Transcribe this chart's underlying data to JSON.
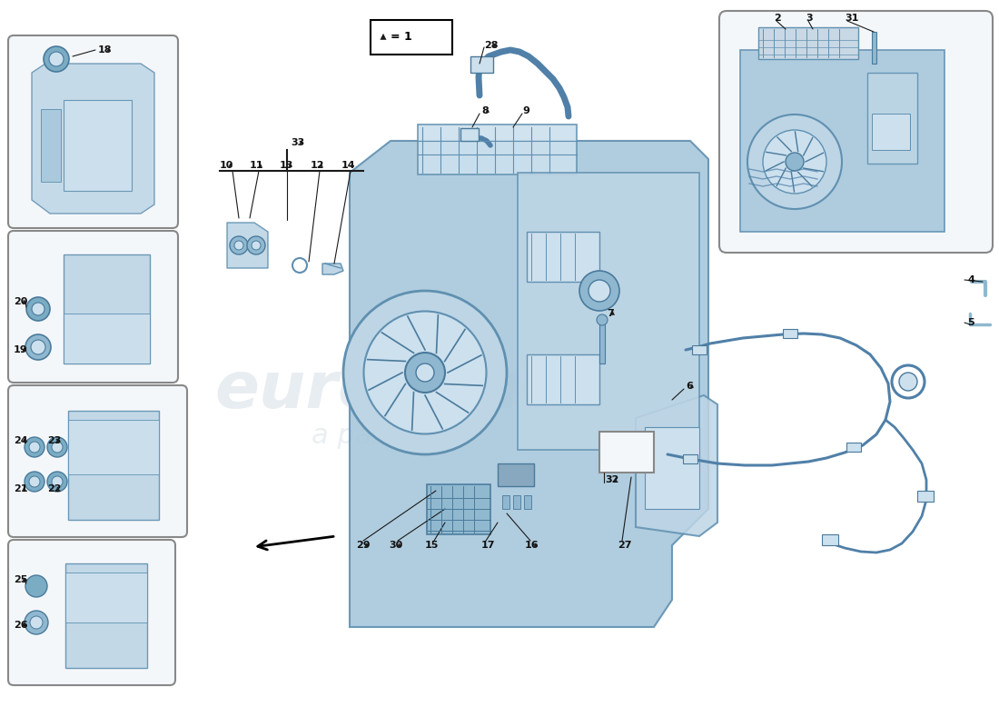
{
  "bg_color": "#ffffff",
  "box_fc": "#f4f7fa",
  "box_ec": "#888888",
  "blue1": "#a8c8dc",
  "blue2": "#bdd5e5",
  "blue3": "#cce0ee",
  "blue4": "#8fb8d0",
  "blue5": "#7aacc4",
  "dark_blue": "#4a7a9b",
  "mid_blue": "#6090b0",
  "wire_color": "#5080a8",
  "line_color": "#1a1a1a",
  "label_fs": 8,
  "small_fs": 7,
  "wm_color": "#ccd8e0",
  "wm_alpha": 0.45
}
